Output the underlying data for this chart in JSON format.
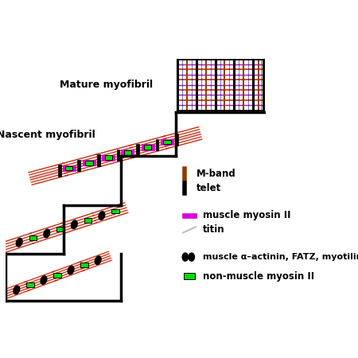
{
  "label_mature": "Mature myofibril",
  "label_nascent": "Nascent myofibril",
  "legend_muscle_myosin": "muscle myosin II",
  "legend_titin": "titin",
  "legend_actinin": "muscle α–actinin, FATZ, myotilin",
  "legend_nonmuscle": "non-muscle myosin II",
  "legend_mband": "M-band",
  "legend_telethonin": "telet",
  "magenta": "#dd00dd",
  "green_box": "#00dd00",
  "black": "#000000",
  "red_line": "#cc2200",
  "brown": "#8B3A00",
  "gray_blue": "#aaaacc",
  "dark_blue": "#000088",
  "purple_line": "#9900aa",
  "white": "#ffffff"
}
